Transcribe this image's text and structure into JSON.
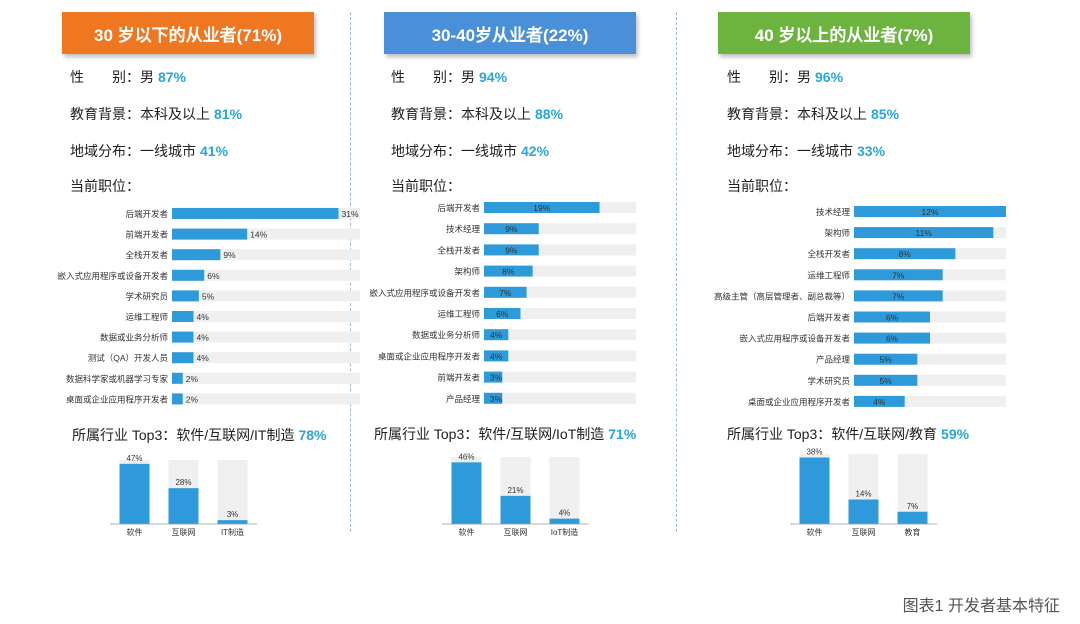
{
  "colors": {
    "bar": "#2e9ad9",
    "track": "#efefef",
    "accent_text": "#27a7d8",
    "header_orange": "#ef7722",
    "header_blue": "#4a90d9",
    "header_green": "#6db33f"
  },
  "labels": {
    "gender": "性",
    "gender_suffix": "别：男",
    "education": "教育背景：本科及以上",
    "region": "地域分布：一线城市",
    "position": "当前职位："
  },
  "caption": "图表1 开发者基本特征",
  "panels": [
    {
      "title": "30 岁以下的从业者(71%)",
      "gender_male": "87%",
      "education_pct": "81%",
      "region_pct": "41%",
      "industry_label": "所属行业 Top3：软件/互联网/IT制造",
      "industry_pct": "78%"
    },
    {
      "title": "30-40岁从业者(22%)",
      "gender_male": "94%",
      "education_pct": "88%",
      "region_pct": "42%",
      "industry_label": "所属行业 Top3：软件/互联网/IoT制造",
      "industry_pct": "71%"
    },
    {
      "title": "40 岁以上的从业者(7%)",
      "gender_male": "96%",
      "education_pct": "85%",
      "region_pct": "33%",
      "industry_label": "所属行业 Top3：软件/互联网/教育",
      "industry_pct": "59%"
    }
  ],
  "chart_data": [
    {
      "type": "bar",
      "orientation": "horizontal",
      "title": "当前职位",
      "xlim": [
        0,
        35
      ],
      "label_position": "outside",
      "categories": [
        "后端开发者",
        "前端开发者",
        "全栈开发者",
        "嵌入式应用程序或设备开发者",
        "学术研究员",
        "运维工程师",
        "数据或业务分析师",
        "测试（QA）开发人员",
        "数据科学家或机器学习专家",
        "桌面或企业应用程序开发者"
      ],
      "values": [
        31,
        14,
        9,
        6,
        5,
        4,
        4,
        4,
        2,
        2
      ],
      "value_labels": [
        "31%",
        "14%",
        "9%",
        "6%",
        "5%",
        "4%",
        "4%",
        "4%",
        "2%",
        "2%"
      ]
    },
    {
      "type": "bar",
      "orientation": "horizontal",
      "title": "当前职位",
      "xlim": [
        0,
        25
      ],
      "label_position": "inside",
      "categories": [
        "后端开发者",
        "技术经理",
        "全栈开发者",
        "架构师",
        "嵌入式应用程序或设备开发者",
        "运维工程师",
        "数据或业务分析师",
        "桌面或企业应用程序开发者",
        "前端开发者",
        "产品经理"
      ],
      "values": [
        19,
        9,
        9,
        8,
        7,
        6,
        4,
        4,
        3,
        3
      ],
      "value_labels": [
        "19%",
        "9%",
        "9%",
        "8%",
        "7%",
        "6%",
        "4%",
        "4%",
        "3%",
        "3%"
      ]
    },
    {
      "type": "bar",
      "orientation": "horizontal",
      "title": "当前职位",
      "xlim": [
        0,
        12
      ],
      "label_position": "inside",
      "categories": [
        "技术经理",
        "架构师",
        "全栈开发者",
        "运维工程师",
        "高级主管（高层管理者、副总裁等）",
        "后端开发者",
        "嵌入式应用程序或设备开发者",
        "产品经理",
        "学术研究员",
        "桌面或企业应用程序开发者"
      ],
      "values": [
        12,
        11,
        8,
        7,
        7,
        6,
        6,
        5,
        5,
        4
      ],
      "value_labels": [
        "12%",
        "11%",
        "8%",
        "7%",
        "7%",
        "6%",
        "6%",
        "5%",
        "5%",
        "4%"
      ]
    },
    {
      "type": "bar",
      "orientation": "vertical",
      "title": "所属行业 Top3",
      "ylim": [
        0,
        50
      ],
      "categories": [
        "软件",
        "互联网",
        "IT制造"
      ],
      "values": [
        47,
        28,
        3
      ],
      "value_labels": [
        "47%",
        "28%",
        "3%"
      ]
    },
    {
      "type": "bar",
      "orientation": "vertical",
      "title": "所属行业 Top3",
      "ylim": [
        0,
        50
      ],
      "categories": [
        "软件",
        "互联网",
        "IoT制造"
      ],
      "values": [
        46,
        21,
        4
      ],
      "value_labels": [
        "46%",
        "21%",
        "4%"
      ]
    },
    {
      "type": "bar",
      "orientation": "vertical",
      "title": "所属行业 Top3",
      "ylim": [
        0,
        40
      ],
      "categories": [
        "软件",
        "互联网",
        "教育"
      ],
      "values": [
        38,
        14,
        7
      ],
      "value_labels": [
        "38%",
        "14%",
        "7%"
      ]
    }
  ]
}
